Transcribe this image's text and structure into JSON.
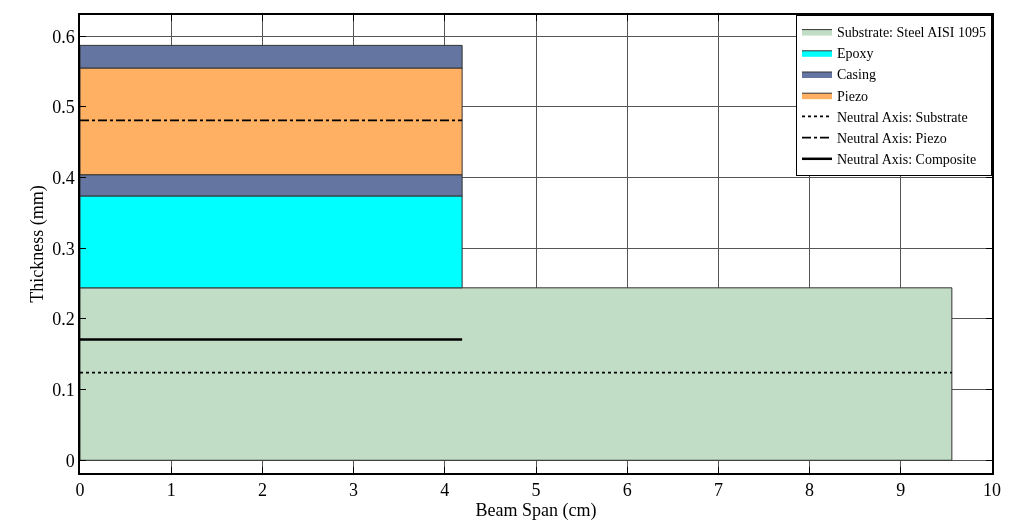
{
  "chart_data": {
    "type": "area",
    "stacked": true,
    "xlabel": "Beam Span (cm)",
    "ylabel": "Thickness (mm)",
    "xlim": [
      0,
      10
    ],
    "xticks": [
      0,
      1,
      2,
      3,
      4,
      5,
      6,
      7,
      8,
      9,
      10
    ],
    "ylim": [
      -0.018,
      0.63
    ],
    "yticks": [
      0,
      0.1,
      0.2,
      0.3,
      0.4,
      0.5,
      0.6
    ],
    "grid": true,
    "legend": "top right",
    "series": [
      {
        "name": "Substrate: Steel AISI 1095",
        "color": "#c2ddc5",
        "x": [
          0,
          9.56
        ],
        "values": [
          0.244,
          0.244
        ]
      },
      {
        "name": "Epoxy",
        "color": "#00ffff",
        "x": [
          0,
          4.19
        ],
        "values": [
          0.13,
          0.13
        ]
      },
      {
        "name": "Casing",
        "color": "#6375a0",
        "x": [
          0,
          4.19
        ],
        "values": [
          0.03,
          0.03
        ]
      },
      {
        "name": "Piezo",
        "color": "#ffb062",
        "x": [
          0,
          4.19
        ],
        "values": [
          0.151,
          0.151
        ]
      },
      {
        "color": "#6375a0",
        "x": [
          0,
          4.19
        ],
        "values": [
          0.032,
          0.032
        ]
      },
      {
        "name": "Neutral Axis: Substrate",
        "type": "line",
        "line_style": "dotted",
        "color": "#000000",
        "x": [
          0,
          9.56
        ],
        "values": [
          0.124,
          0.124
        ]
      },
      {
        "name": "Neutral Axis: Piezo",
        "type": "line",
        "line_style": "dashdot",
        "color": "#000000",
        "x": [
          0,
          4.19
        ],
        "values": [
          0.481,
          0.481
        ]
      },
      {
        "name": "Neutral Axis: Composite",
        "type": "line",
        "line_style": "solid",
        "color": "#000000",
        "x": [
          0,
          4.19
        ],
        "values": [
          0.171,
          0.171
        ]
      }
    ]
  }
}
